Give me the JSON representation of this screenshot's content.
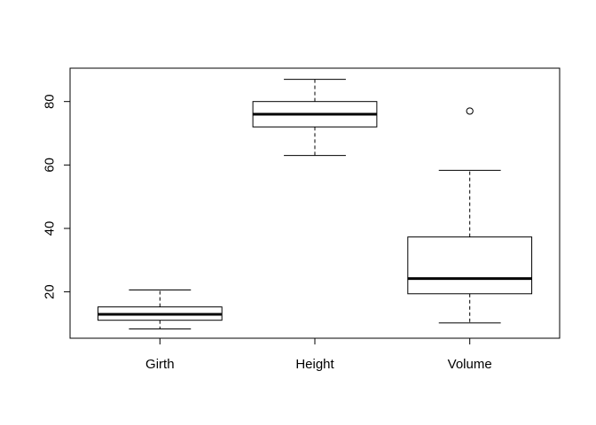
{
  "chart_data": {
    "type": "boxplot",
    "title": "",
    "xlabel": "",
    "ylabel": "",
    "categories": [
      "Girth",
      "Height",
      "Volume"
    ],
    "ylim": [
      5,
      90
    ],
    "yticks": [
      20,
      40,
      60,
      80
    ],
    "y_tick_labels": [
      "20",
      "40",
      "60",
      "80"
    ],
    "grid": false,
    "boxes": [
      {
        "name": "Girth",
        "whisker_low": 8.3,
        "q1": 11.05,
        "median": 12.9,
        "q3": 15.25,
        "whisker_high": 20.6,
        "outliers": []
      },
      {
        "name": "Height",
        "whisker_low": 63,
        "q1": 72,
        "median": 76,
        "q3": 80,
        "whisker_high": 87,
        "outliers": []
      },
      {
        "name": "Volume",
        "whisker_low": 10.2,
        "q1": 19.4,
        "median": 24.2,
        "q3": 37.3,
        "whisker_high": 58.3,
        "outliers": [
          77
        ]
      }
    ]
  }
}
